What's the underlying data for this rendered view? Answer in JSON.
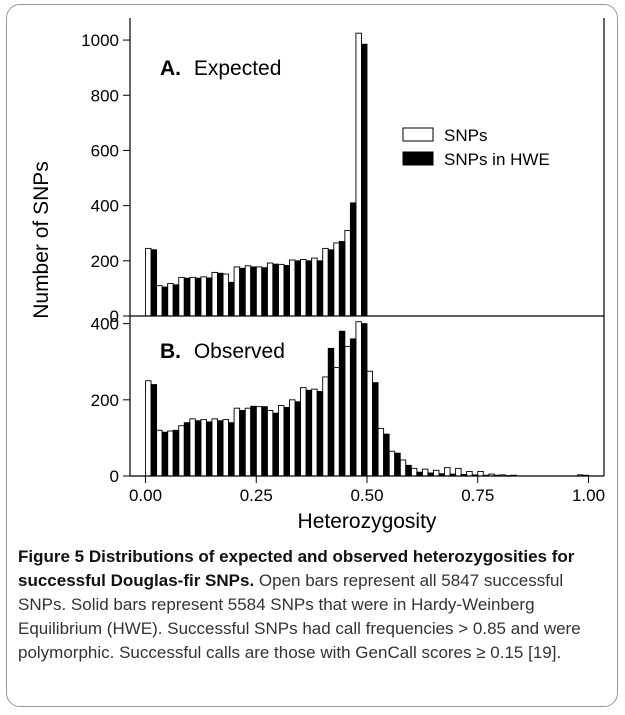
{
  "chart_data": {
    "type": "bar",
    "ylabel": "Number of SNPs",
    "xlabel": "Heterozygosity",
    "x_ticks": [
      "0.00",
      "0.25",
      "0.50",
      "0.75",
      "1.00"
    ],
    "xlim": [
      -0.035,
      1.035
    ],
    "bin_width": 0.0125,
    "legend": {
      "position": "top-right",
      "entries": [
        "SNPs",
        "SNPs in HWE"
      ]
    },
    "panels": [
      {
        "label_letter": "A.",
        "label_text": "Expected",
        "ylim": [
          0,
          1080
        ],
        "y_ticks": [
          0,
          200,
          400,
          600,
          800,
          1000
        ],
        "series": [
          {
            "name": "SNPs",
            "x": [
              0.0,
              0.025,
              0.05,
              0.075,
              0.1,
              0.125,
              0.15,
              0.175,
              0.2,
              0.225,
              0.25,
              0.275,
              0.3,
              0.325,
              0.35,
              0.375,
              0.4,
              0.425,
              0.45,
              0.475
            ],
            "values": [
              245,
              110,
              118,
              140,
              140,
              142,
              158,
              152,
              178,
              182,
              178,
              192,
              187,
              203,
              205,
              210,
              245,
              265,
              310,
              1025
            ]
          },
          {
            "name": "SNPs in HWE",
            "x": [
              0.0125,
              0.0375,
              0.0625,
              0.0875,
              0.1125,
              0.1375,
              0.1625,
              0.1875,
              0.2125,
              0.2375,
              0.2625,
              0.2875,
              0.3125,
              0.3375,
              0.3625,
              0.3875,
              0.4125,
              0.4375,
              0.4625,
              0.4875
            ],
            "values": [
              240,
              105,
              113,
              137,
              137,
              138,
              155,
              122,
              173,
              178,
              175,
              188,
              183,
              200,
              200,
              200,
              240,
              270,
              410,
              985
            ]
          }
        ]
      },
      {
        "label_letter": "B.",
        "label_text": "Observed",
        "ylim": [
          0,
          420
        ],
        "y_ticks": [
          0,
          200,
          400
        ],
        "series": [
          {
            "name": "SNPs",
            "x": [
              0.0,
              0.025,
              0.05,
              0.075,
              0.1,
              0.125,
              0.15,
              0.175,
              0.2,
              0.225,
              0.25,
              0.275,
              0.3,
              0.325,
              0.35,
              0.375,
              0.4,
              0.425,
              0.45,
              0.475,
              0.5,
              0.525,
              0.55,
              0.575,
              0.6,
              0.625,
              0.65,
              0.675,
              0.7,
              0.725,
              0.75,
              0.775,
              0.8,
              0.825,
              0.975
            ],
            "values": [
              250,
              120,
              118,
              132,
              150,
              148,
              150,
              148,
              178,
              178,
              182,
              172,
              185,
              200,
              232,
              228,
              260,
              285,
              340,
              405,
              275,
              125,
              65,
              42,
              20,
              18,
              15,
              22,
              20,
              12,
              12,
              5,
              3,
              2,
              3
            ]
          },
          {
            "name": "SNPs in HWE",
            "x": [
              0.0125,
              0.0375,
              0.0625,
              0.0875,
              0.1125,
              0.1375,
              0.1625,
              0.1875,
              0.2125,
              0.2375,
              0.2625,
              0.2875,
              0.3125,
              0.3375,
              0.3625,
              0.3875,
              0.4125,
              0.4375,
              0.4625,
              0.4875,
              0.5125,
              0.5375,
              0.5625,
              0.5875,
              0.6125,
              0.6375,
              0.6625,
              0.6875,
              0.7125,
              0.7375,
              0.7625,
              0.7875,
              0.8125,
              0.9875
            ],
            "values": [
              240,
              115,
              120,
              140,
              145,
              142,
              145,
              140,
              172,
              183,
              182,
              165,
              180,
              195,
              225,
              222,
              335,
              380,
              360,
              400,
              245,
              110,
              60,
              28,
              10,
              8,
              6,
              5,
              4,
              3,
              2,
              2,
              1,
              2
            ]
          }
        ]
      }
    ]
  },
  "caption": {
    "title": "Figure 5 Distributions of expected and observed heterozygosities for successful Douglas-fir SNPs.",
    "body": "Open bars represent all 5847 successful SNPs. Solid bars represent 5584 SNPs that were in Hardy-Weinberg Equilibrium (HWE). Successful SNPs had call frequencies > 0.85 and were polymorphic. Successful calls are those with GenCall scores ≥ 0.15 [19]."
  }
}
